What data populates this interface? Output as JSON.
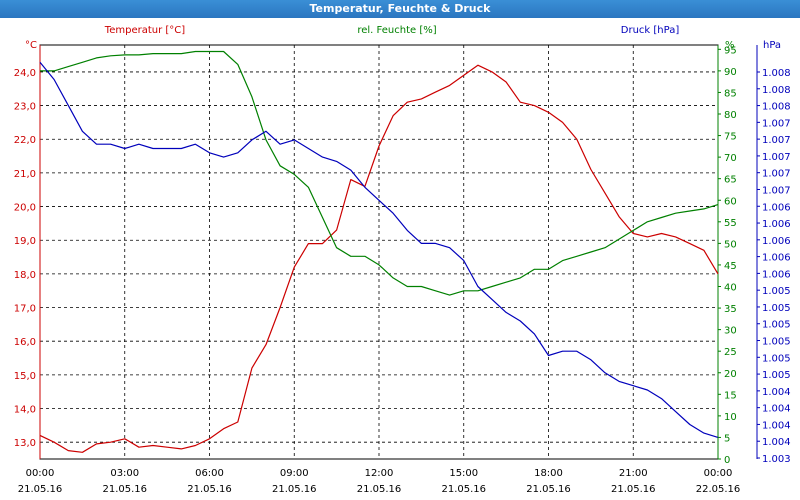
{
  "title": "Temperatur, Feuchte & Druck",
  "colors": {
    "temperature": "#cc0000",
    "humidity": "#008000",
    "pressure": "#0000bb",
    "grid": "#000000"
  },
  "chart_data": {
    "type": "line",
    "title": "Temperatur, Feuchte & Druck",
    "grid": true,
    "axes": {
      "temperature": {
        "unit": "°C",
        "header": "Temperatur [°C]",
        "ylim": [
          12.5,
          24.8
        ],
        "ticks": [
          "13,0",
          "14,0",
          "15,0",
          "16,0",
          "17,0",
          "18,0",
          "19,0",
          "20,0",
          "21,0",
          "22,0",
          "23,0",
          "24,0"
        ]
      },
      "humidity": {
        "unit": "%",
        "header": "rel. Feuchte [%]",
        "ylim": [
          0,
          96
        ],
        "ticks": [
          "0",
          "5",
          "10",
          "15",
          "20",
          "25",
          "30",
          "35",
          "40",
          "45",
          "50",
          "55",
          "60",
          "65",
          "70",
          "75",
          "80",
          "85",
          "90",
          "95"
        ]
      },
      "pressure": {
        "unit": "hPa",
        "header": "Druck [hPa]",
        "ylim": [
          0,
          96
        ],
        "ticks": [
          "1.003",
          "1.004",
          "1.004",
          "1.004",
          "1.004",
          "1.005",
          "1.005",
          "1.005",
          "1.005",
          "1.005",
          "1.005",
          "1.006",
          "1.006",
          "1.006",
          "1.006",
          "1.006",
          "1.007",
          "1.007",
          "1.007",
          "1.007",
          "1.007",
          "1.008",
          "1.008",
          "1.008"
        ]
      }
    },
    "x_ticks": [
      {
        "time": "00:00",
        "date": "21.05.16"
      },
      {
        "time": "03:00",
        "date": "21.05.16"
      },
      {
        "time": "06:00",
        "date": "21.05.16"
      },
      {
        "time": "09:00",
        "date": "21.05.16"
      },
      {
        "time": "12:00",
        "date": "21.05.16"
      },
      {
        "time": "15:00",
        "date": "21.05.16"
      },
      {
        "time": "18:00",
        "date": "21.05.16"
      },
      {
        "time": "21:00",
        "date": "21.05.16"
      },
      {
        "time": "00:00",
        "date": "22.05.16"
      }
    ],
    "x_hours": [
      0,
      0.5,
      1,
      1.5,
      2,
      2.5,
      3,
      3.5,
      4,
      4.5,
      5,
      5.5,
      6,
      6.5,
      7,
      7.5,
      8,
      8.5,
      9,
      9.5,
      10,
      10.5,
      11,
      11.5,
      12,
      12.5,
      13,
      13.5,
      14,
      14.5,
      15,
      15.5,
      16,
      16.5,
      17,
      17.5,
      18,
      18.5,
      19,
      19.5,
      20,
      20.5,
      21,
      21.5,
      22,
      22.5,
      23,
      23.5,
      24
    ],
    "series": [
      {
        "name": "Temperatur [°C]",
        "axis": "temperature",
        "values": [
          13.2,
          13.0,
          12.75,
          12.7,
          12.95,
          13.0,
          13.1,
          12.85,
          12.9,
          12.85,
          12.8,
          12.9,
          13.1,
          13.4,
          13.6,
          15.2,
          15.9,
          17.0,
          18.2,
          18.9,
          18.9,
          19.3,
          20.8,
          20.6,
          21.8,
          22.7,
          23.1,
          23.2,
          23.4,
          23.6,
          23.9,
          24.2,
          24.0,
          23.7,
          23.1,
          23.0,
          22.8,
          22.5,
          22.0,
          21.1,
          20.4,
          19.7,
          19.2,
          19.1,
          19.2,
          19.1,
          18.9,
          18.7,
          18.0
        ]
      },
      {
        "name": "rel. Feuchte [%]",
        "axis": "humidity",
        "values": [
          90,
          90,
          91,
          92,
          93,
          93.5,
          93.7,
          93.7,
          94,
          94,
          94,
          94.5,
          94.5,
          94.5,
          91.5,
          84,
          74,
          68,
          66,
          63,
          56,
          49,
          47,
          47,
          45,
          42,
          40,
          40,
          39,
          38,
          39,
          39,
          40,
          41,
          42,
          44,
          44,
          46,
          47,
          48,
          49,
          51,
          53,
          55,
          56,
          57,
          57.5,
          58,
          59
        ]
      },
      {
        "name": "Druck [hPa]",
        "axis": "pressure",
        "values": [
          92,
          88,
          82,
          76,
          73,
          73,
          72,
          73,
          72,
          72,
          72,
          73,
          71,
          70,
          71,
          74,
          76,
          73,
          74,
          72,
          70,
          69,
          67,
          63,
          60,
          57,
          53,
          50,
          50,
          49,
          46,
          40,
          37,
          34,
          32,
          29,
          24,
          25,
          25,
          23,
          20,
          18,
          17,
          16,
          14,
          11,
          8,
          6,
          5
        ]
      }
    ]
  }
}
